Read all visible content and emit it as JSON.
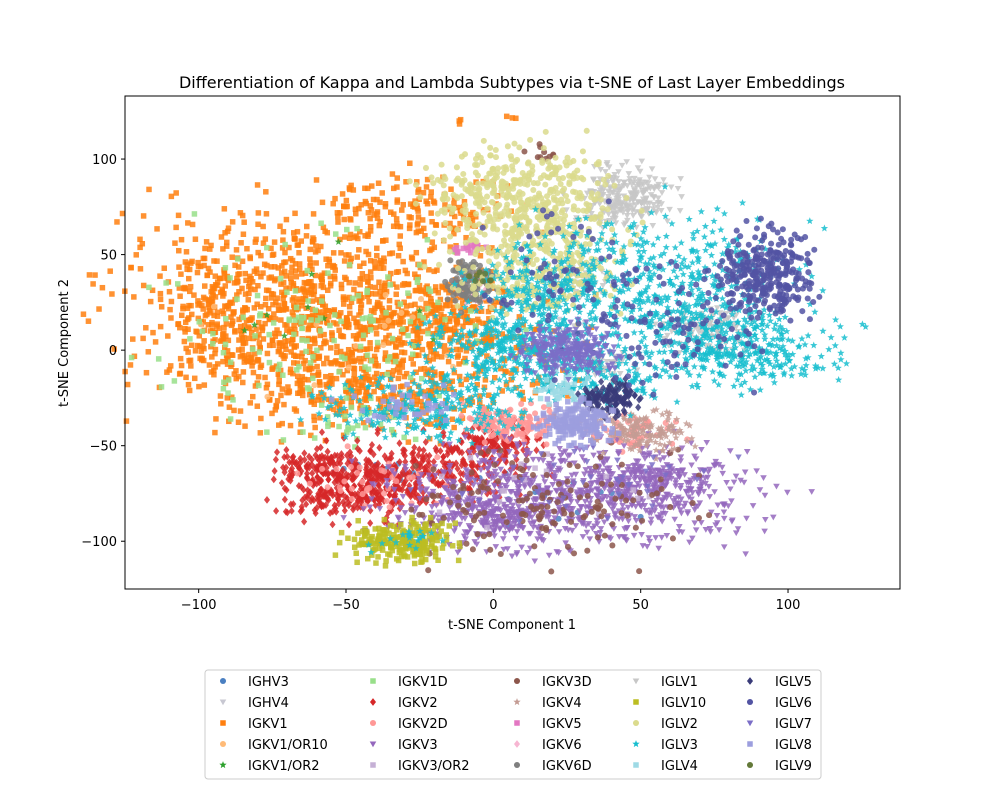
{
  "chart_data": {
    "type": "scatter",
    "title": "Differentiation of Kappa and Lambda Subtypes via t-SNE of Last Layer Embeddings",
    "xlabel": "t-SNE Component 1",
    "ylabel": "t-SNE Component 2",
    "xlim": [
      -125,
      138
    ],
    "ylim": [
      -125,
      133
    ],
    "xticks": [
      -100,
      -50,
      0,
      50,
      100
    ],
    "yticks": [
      -100,
      -50,
      0,
      50,
      100
    ],
    "grid": false,
    "legend_position": "bottom-center",
    "legend_columns": 5,
    "series": [
      {
        "name": "IGHV3",
        "color": "#4a7fc1",
        "marker": "circle",
        "clusters": [
          {
            "cx": -40,
            "cy": -65,
            "rx": 10,
            "ry": 6,
            "n": 15
          },
          {
            "cx": 20,
            "cy": -75,
            "rx": 20,
            "ry": 10,
            "n": 15
          }
        ]
      },
      {
        "name": "IGHV4",
        "color": "#c8c8d2",
        "marker": "triangle",
        "clusters": [
          {
            "cx": 25,
            "cy": 10,
            "rx": 10,
            "ry": 6,
            "n": 15
          }
        ]
      },
      {
        "name": "IGKV1",
        "color": "#ff7f0e",
        "marker": "square",
        "clusters": [
          {
            "cx": -62,
            "cy": 35,
            "rx": 42,
            "ry": 28,
            "n": 700
          },
          {
            "cx": -45,
            "cy": 0,
            "rx": 45,
            "ry": 25,
            "n": 500
          },
          {
            "cx": -28,
            "cy": 75,
            "rx": 22,
            "ry": 13,
            "n": 120
          },
          {
            "cx": -95,
            "cy": 15,
            "rx": 10,
            "ry": 20,
            "n": 120
          },
          {
            "cx": -40,
            "cy": -20,
            "rx": 30,
            "ry": 15,
            "n": 250
          },
          {
            "cx": -15,
            "cy": 15,
            "rx": 10,
            "ry": 12,
            "n": 100
          },
          {
            "cx": 6,
            "cy": 122,
            "rx": 1,
            "ry": 1,
            "n": 3
          },
          {
            "cx": -11,
            "cy": 120,
            "rx": 1,
            "ry": 1,
            "n": 3
          }
        ]
      },
      {
        "name": "IGKV1/OR10",
        "color": "#ffbb78",
        "marker": "circle",
        "clusters": [
          {
            "cx": -50,
            "cy": 10,
            "rx": 35,
            "ry": 25,
            "n": 20
          }
        ]
      },
      {
        "name": "IGKV1/OR2",
        "color": "#2ca02c",
        "marker": "star",
        "clusters": [
          {
            "cx": -50,
            "cy": 10,
            "rx": 30,
            "ry": 25,
            "n": 10
          }
        ]
      },
      {
        "name": "IGKV1D",
        "color": "#98df8a",
        "marker": "square",
        "clusters": [
          {
            "cx": -55,
            "cy": 15,
            "rx": 35,
            "ry": 30,
            "n": 150
          },
          {
            "cx": -50,
            "cy": -40,
            "rx": 15,
            "ry": 8,
            "n": 30
          }
        ]
      },
      {
        "name": "IGKV2",
        "color": "#d62728",
        "marker": "diamond",
        "clusters": [
          {
            "cx": -60,
            "cy": -60,
            "rx": 8,
            "ry": 6,
            "n": 80
          },
          {
            "cx": -48,
            "cy": -73,
            "rx": 16,
            "ry": 10,
            "n": 300
          },
          {
            "cx": -20,
            "cy": -60,
            "rx": 22,
            "ry": 10,
            "n": 250
          },
          {
            "cx": 0,
            "cy": -48,
            "rx": 10,
            "ry": 7,
            "n": 100
          }
        ]
      },
      {
        "name": "IGKV2D",
        "color": "#ff9896",
        "marker": "circle",
        "clusters": [
          {
            "cx": 5,
            "cy": -38,
            "rx": 10,
            "ry": 6,
            "n": 120
          },
          {
            "cx": -40,
            "cy": -70,
            "rx": 15,
            "ry": 10,
            "n": 40
          },
          {
            "cx": 48,
            "cy": -42,
            "rx": 10,
            "ry": 6,
            "n": 60
          }
        ]
      },
      {
        "name": "IGKV3",
        "color": "#9467bd",
        "marker": "triangle",
        "clusters": [
          {
            "cx": 25,
            "cy": -78,
            "rx": 38,
            "ry": 18,
            "n": 800
          },
          {
            "cx": 55,
            "cy": -68,
            "rx": 15,
            "ry": 10,
            "n": 200
          },
          {
            "cx": -5,
            "cy": -85,
            "rx": 15,
            "ry": 10,
            "n": 150
          }
        ]
      },
      {
        "name": "IGKV3/OR2",
        "color": "#c5b0d5",
        "marker": "square",
        "clusters": [
          {
            "cx": 15,
            "cy": -70,
            "rx": 30,
            "ry": 15,
            "n": 20
          }
        ]
      },
      {
        "name": "IGKV3D",
        "color": "#8c564b",
        "marker": "circle",
        "clusters": [
          {
            "cx": 20,
            "cy": -80,
            "rx": 35,
            "ry": 18,
            "n": 150
          },
          {
            "cx": 17,
            "cy": 103,
            "rx": 3,
            "ry": 3,
            "n": 10
          }
        ]
      },
      {
        "name": "IGKV4",
        "color": "#c49c94",
        "marker": "star",
        "clusters": [
          {
            "cx": 50,
            "cy": -42,
            "rx": 12,
            "ry": 7,
            "n": 150
          }
        ]
      },
      {
        "name": "IGKV5",
        "color": "#e377c2",
        "marker": "square",
        "clusters": [
          {
            "cx": -8,
            "cy": 54,
            "rx": 3,
            "ry": 2,
            "n": 20
          }
        ]
      },
      {
        "name": "IGKV6",
        "color": "#f7b6d2",
        "marker": "diamond",
        "clusters": [
          {
            "cx": -8,
            "cy": 32,
            "rx": 4,
            "ry": 5,
            "n": 30
          }
        ]
      },
      {
        "name": "IGKV6D",
        "color": "#7f7f7f",
        "marker": "circle",
        "clusters": [
          {
            "cx": -8,
            "cy": 35,
            "rx": 6,
            "ry": 8,
            "n": 100
          }
        ]
      },
      {
        "name": "IGLV1",
        "color": "#c7c7c7",
        "marker": "triangle",
        "clusters": [
          {
            "cx": 45,
            "cy": 80,
            "rx": 10,
            "ry": 10,
            "n": 250
          },
          {
            "cx": 72,
            "cy": 10,
            "rx": 10,
            "ry": 8,
            "n": 120
          },
          {
            "cx": 38,
            "cy": -8,
            "rx": 5,
            "ry": 5,
            "n": 40
          },
          {
            "cx": 30,
            "cy": 38,
            "rx": 6,
            "ry": 8,
            "n": 40
          }
        ]
      },
      {
        "name": "IGLV10",
        "color": "#bcbd22",
        "marker": "square",
        "clusters": [
          {
            "cx": -32,
            "cy": -100,
            "rx": 12,
            "ry": 7,
            "n": 220
          }
        ]
      },
      {
        "name": "IGLV2",
        "color": "#dbdb8d",
        "marker": "circle",
        "clusters": [
          {
            "cx": 10,
            "cy": 80,
            "rx": 20,
            "ry": 18,
            "n": 450
          },
          {
            "cx": 15,
            "cy": 45,
            "rx": 18,
            "ry": 18,
            "n": 300
          }
        ]
      },
      {
        "name": "IGLV3",
        "color": "#17becf",
        "marker": "star",
        "clusters": [
          {
            "cx": 55,
            "cy": 30,
            "rx": 30,
            "ry": 25,
            "n": 600
          },
          {
            "cx": 85,
            "cy": 0,
            "rx": 20,
            "ry": 12,
            "n": 300
          },
          {
            "cx": 5,
            "cy": 0,
            "rx": 18,
            "ry": 12,
            "n": 300
          },
          {
            "cx": -25,
            "cy": -30,
            "rx": 20,
            "ry": 10,
            "n": 250
          },
          {
            "cx": 30,
            "cy": -15,
            "rx": 20,
            "ry": 10,
            "n": 150
          },
          {
            "cx": 15,
            "cy": 30,
            "rx": 15,
            "ry": 15,
            "n": 150
          },
          {
            "cx": -30,
            "cy": -100,
            "rx": 8,
            "ry": 5,
            "n": 20
          },
          {
            "cx": 126,
            "cy": 12,
            "rx": 1,
            "ry": 3,
            "n": 2
          }
        ]
      },
      {
        "name": "IGLV4",
        "color": "#9edae5",
        "marker": "square",
        "clusters": [
          {
            "cx": 25,
            "cy": -20,
            "rx": 6,
            "ry": 5,
            "n": 40
          }
        ]
      },
      {
        "name": "IGLV5",
        "color": "#393b79",
        "marker": "diamond",
        "clusters": [
          {
            "cx": 40,
            "cy": -25,
            "rx": 6,
            "ry": 6,
            "n": 120
          }
        ]
      },
      {
        "name": "IGLV6",
        "color": "#5254a3",
        "marker": "circle",
        "clusters": [
          {
            "cx": 92,
            "cy": 40,
            "rx": 10,
            "ry": 15,
            "n": 300
          },
          {
            "cx": 55,
            "cy": 15,
            "rx": 22,
            "ry": 20,
            "n": 120
          },
          {
            "cx": 20,
            "cy": 40,
            "rx": 15,
            "ry": 20,
            "n": 50
          }
        ]
      },
      {
        "name": "IGLV7",
        "color": "#7b6ec7",
        "marker": "triangle",
        "clusters": [
          {
            "cx": 25,
            "cy": 0,
            "rx": 10,
            "ry": 8,
            "n": 280
          },
          {
            "cx": 30,
            "cy": -70,
            "rx": 30,
            "ry": 15,
            "n": 40
          }
        ]
      },
      {
        "name": "IGLV8",
        "color": "#9c9ede",
        "marker": "square",
        "clusters": [
          {
            "cx": 28,
            "cy": -38,
            "rx": 8,
            "ry": 7,
            "n": 180
          },
          {
            "cx": -30,
            "cy": -30,
            "rx": 12,
            "ry": 8,
            "n": 40
          }
        ]
      },
      {
        "name": "IGLV9",
        "color": "#637939",
        "marker": "circle",
        "clusters": [
          {
            "cx": -5,
            "cy": 38,
            "rx": 3,
            "ry": 3,
            "n": 8
          }
        ]
      }
    ]
  }
}
